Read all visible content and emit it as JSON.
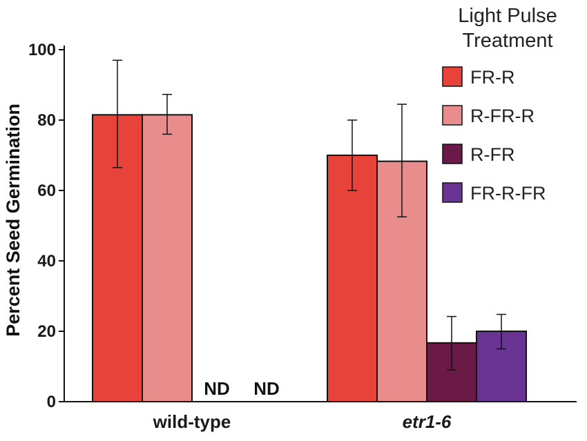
{
  "chart_data": {
    "type": "bar",
    "title": "",
    "xlabel": "",
    "ylabel": "Percent Seed Germination",
    "ylim": [
      0,
      100
    ],
    "yticks": [
      0,
      20,
      40,
      60,
      80,
      100
    ],
    "categories": [
      "wild-type",
      "etr1-6"
    ],
    "category_styles": [
      "normal",
      "italic"
    ],
    "legend_title": [
      "Light Pulse",
      "Treatment"
    ],
    "legend_position": "top-right",
    "series": [
      {
        "name": "FR-R",
        "color": "#e8433a",
        "values": [
          81.5,
          70
        ],
        "errors_low": [
          66.5,
          60
        ],
        "errors_high": [
          97,
          80
        ]
      },
      {
        "name": "R-FR-R",
        "color": "#e88c8c",
        "values": [
          81.5,
          68.3
        ],
        "errors_low": [
          76,
          52.5
        ],
        "errors_high": [
          87.3,
          84.5
        ]
      },
      {
        "name": "R-FR",
        "color": "#6b1a47",
        "values": [
          null,
          16.7
        ],
        "errors_low": [
          null,
          9
        ],
        "errors_high": [
          null,
          24.2
        ]
      },
      {
        "name": "FR-R-FR",
        "color": "#6a3494",
        "values": [
          null,
          20
        ],
        "errors_low": [
          null,
          15
        ],
        "errors_high": [
          null,
          24.8
        ]
      }
    ],
    "annotations": [
      {
        "text": "ND",
        "category": "wild-type",
        "series": "R-FR"
      },
      {
        "text": "ND",
        "category": "wild-type",
        "series": "FR-R-FR"
      }
    ]
  }
}
